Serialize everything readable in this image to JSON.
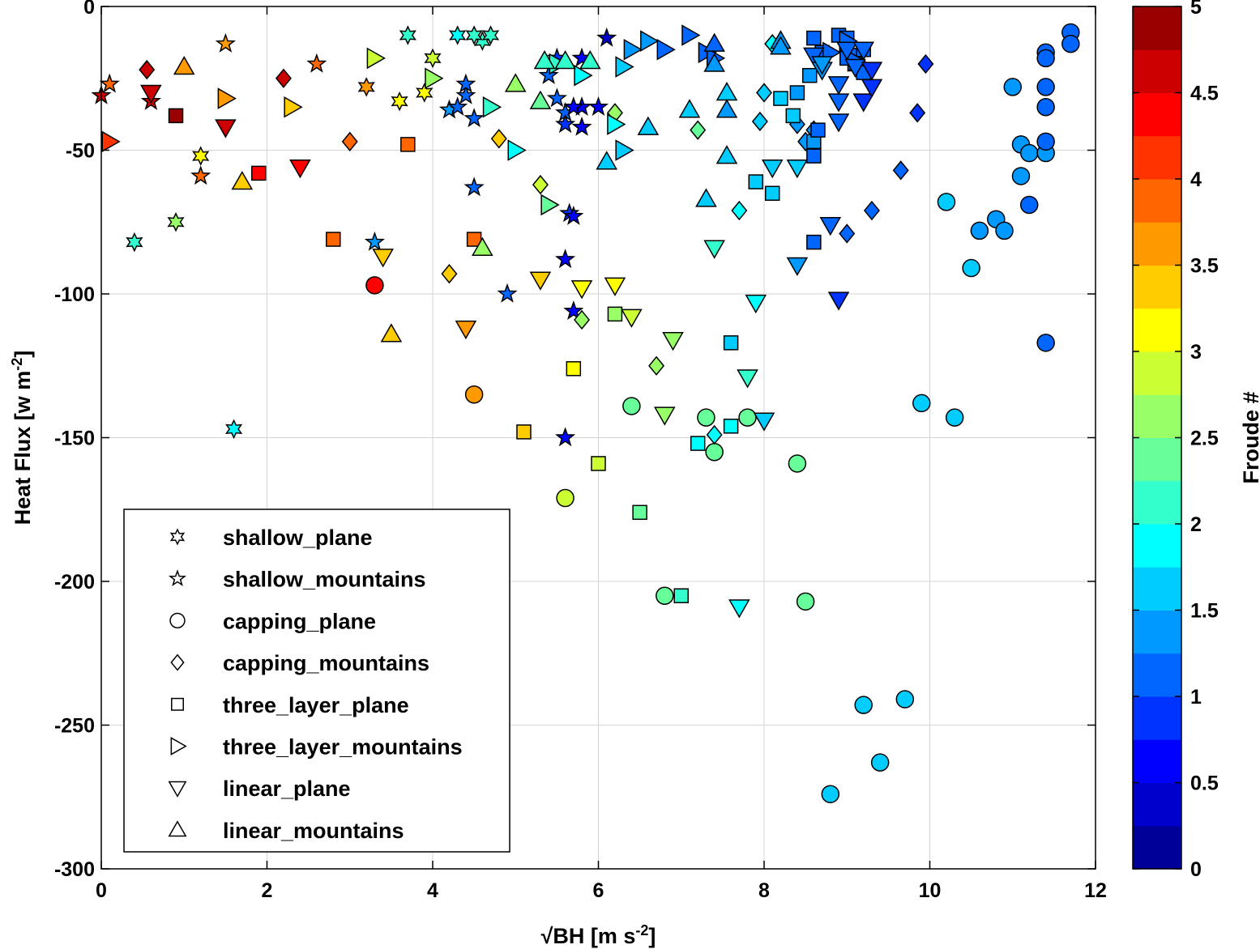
{
  "chart_data": {
    "type": "scatter",
    "xlabel_parts": [
      "√BH [m s",
      "-2",
      "]"
    ],
    "ylabel_parts": [
      "Heat Flux [w m",
      "-2",
      "]"
    ],
    "xlim": [
      0,
      12
    ],
    "ylim": [
      -300,
      0
    ],
    "xticks": [
      0,
      2,
      4,
      6,
      8,
      10,
      12
    ],
    "yticks": [
      0,
      -50,
      -100,
      -150,
      -200,
      -250,
      -300
    ],
    "xtick_labels": [
      "0",
      "2",
      "4",
      "6",
      "8",
      "10",
      "12"
    ],
    "ytick_labels": [
      "0",
      "-50",
      "-100",
      "-150",
      "-200",
      "-250",
      "-300"
    ],
    "grid": true,
    "legend_position": "lower-left",
    "colorbar": {
      "label": "Froude #",
      "range": [
        0,
        5
      ],
      "steps": 20,
      "ticks": [
        0,
        0.5,
        1,
        1.5,
        2,
        2.5,
        3,
        3.5,
        4,
        4.5,
        5
      ],
      "tick_labels": [
        "0",
        "0.5",
        "1",
        "1.5",
        "2",
        "2.5",
        "3",
        "3.5",
        "4",
        "4.5",
        "5"
      ],
      "colormap": "jet"
    },
    "series": [
      {
        "name": "shallow_plane",
        "marker": "hexagram",
        "points": [
          [
            0.4,
            -82,
            2.2
          ],
          [
            0.9,
            -75,
            2.6
          ],
          [
            1.2,
            -52,
            3.1
          ],
          [
            1.6,
            -147,
            1.8
          ],
          [
            3.7,
            -10,
            2.2
          ],
          [
            4.0,
            -18,
            2.8
          ],
          [
            3.9,
            -30,
            3.0
          ],
          [
            3.6,
            -33,
            3.2
          ],
          [
            3.2,
            -28,
            3.5
          ],
          [
            4.3,
            -10,
            1.9
          ],
          [
            4.6,
            -12,
            2.0
          ],
          [
            4.7,
            -10,
            2.0
          ],
          [
            4.5,
            -10,
            2.0
          ]
        ]
      },
      {
        "name": "shallow_mountains",
        "marker": "pentagram",
        "points": [
          [
            0.0,
            -31,
            4.7
          ],
          [
            0.1,
            -27,
            3.8
          ],
          [
            0.6,
            -33,
            4.7
          ],
          [
            1.2,
            -59,
            3.8
          ],
          [
            1.5,
            -13,
            3.6
          ],
          [
            2.6,
            -20,
            3.8
          ],
          [
            3.3,
            -82,
            1.3
          ],
          [
            4.2,
            -36,
            1.3
          ],
          [
            4.3,
            -35,
            1.2
          ],
          [
            4.4,
            -31,
            1.2
          ],
          [
            4.4,
            -27,
            1.2
          ],
          [
            4.5,
            -39,
            1.1
          ],
          [
            4.5,
            -63,
            1.0
          ],
          [
            4.9,
            -100,
            1.0
          ],
          [
            5.4,
            -24,
            1.0
          ],
          [
            5.5,
            -32,
            1.1
          ],
          [
            5.5,
            -18,
            0.9
          ],
          [
            5.6,
            -37,
            1.0
          ],
          [
            5.6,
            -41,
            0.9
          ],
          [
            5.65,
            -72,
            0.8
          ],
          [
            5.7,
            -73,
            0.7
          ],
          [
            5.6,
            -88,
            0.7
          ],
          [
            5.7,
            -106,
            0.7
          ],
          [
            5.6,
            -150,
            0.7
          ],
          [
            5.8,
            -18,
            0.6
          ],
          [
            5.8,
            -35,
            0.7
          ],
          [
            5.8,
            -42,
            0.7
          ],
          [
            6.0,
            -35,
            0.5
          ],
          [
            6.1,
            -11,
            0.3
          ],
          [
            5.7,
            -35,
            0.7
          ]
        ]
      },
      {
        "name": "capping_plane",
        "marker": "circle",
        "points": [
          [
            3.3,
            -97,
            4.3
          ],
          [
            4.5,
            -135,
            3.7
          ],
          [
            5.6,
            -171,
            2.8
          ],
          [
            6.4,
            -139,
            2.4
          ],
          [
            6.8,
            -205,
            2.4
          ],
          [
            7.3,
            -143,
            2.4
          ],
          [
            7.4,
            -155,
            2.4
          ],
          [
            7.8,
            -143,
            2.4
          ],
          [
            8.4,
            -159,
            2.4
          ],
          [
            8.5,
            -207,
            2.4
          ],
          [
            8.8,
            -274,
            1.7
          ],
          [
            9.2,
            -243,
            1.7
          ],
          [
            9.4,
            -263,
            1.6
          ],
          [
            9.7,
            -241,
            1.7
          ],
          [
            9.9,
            -138,
            1.6
          ],
          [
            10.2,
            -68,
            1.5
          ],
          [
            10.3,
            -143,
            1.5
          ],
          [
            10.5,
            -91,
            1.5
          ],
          [
            10.6,
            -78,
            1.4
          ],
          [
            10.8,
            -74,
            1.4
          ],
          [
            10.9,
            -78,
            1.4
          ],
          [
            11.0,
            -28,
            1.4
          ],
          [
            11.1,
            -59,
            1.3
          ],
          [
            11.1,
            -48,
            1.4
          ],
          [
            11.2,
            -69,
            1.1
          ],
          [
            11.2,
            -51,
            1.3
          ],
          [
            11.4,
            -51,
            1.3
          ],
          [
            11.4,
            -35,
            1.0
          ],
          [
            11.4,
            -28,
            1.0
          ],
          [
            11.4,
            -16,
            1.0
          ],
          [
            11.4,
            -47,
            1.1
          ],
          [
            11.4,
            -117,
            1.0
          ],
          [
            11.4,
            -18,
            1.0
          ],
          [
            11.7,
            -9,
            1.1
          ],
          [
            11.7,
            -13,
            1.1
          ]
        ]
      },
      {
        "name": "capping_mountains",
        "marker": "diamond",
        "points": [
          [
            0.55,
            -22,
            4.5
          ],
          [
            2.2,
            -25,
            4.5
          ],
          [
            3.0,
            -47,
            3.9
          ],
          [
            4.2,
            -93,
            3.3
          ],
          [
            4.8,
            -46,
            3.3
          ],
          [
            5.3,
            -62,
            2.9
          ],
          [
            5.8,
            -109,
            2.6
          ],
          [
            6.2,
            -37,
            2.6
          ],
          [
            6.7,
            -125,
            2.5
          ],
          [
            7.2,
            -43,
            2.3
          ],
          [
            7.7,
            -71,
            1.8
          ],
          [
            7.95,
            -40,
            1.6
          ],
          [
            8.0,
            -30,
            1.5
          ],
          [
            8.1,
            -13,
            1.8
          ],
          [
            8.4,
            -41,
            1.4
          ],
          [
            8.5,
            -47,
            1.3
          ],
          [
            8.6,
            -43,
            1.3
          ],
          [
            9.0,
            -79,
            1.0
          ],
          [
            9.3,
            -71,
            1.0
          ],
          [
            9.65,
            -57,
            1.0
          ],
          [
            9.85,
            -37,
            0.9
          ],
          [
            9.95,
            -20,
            0.9
          ],
          [
            7.4,
            -149,
            1.9
          ]
        ]
      },
      {
        "name": "three_layer_plane",
        "marker": "square",
        "points": [
          [
            0.9,
            -38,
            4.8
          ],
          [
            1.9,
            -58,
            4.3
          ],
          [
            2.8,
            -81,
            3.8
          ],
          [
            3.7,
            -48,
            3.8
          ],
          [
            4.5,
            -81,
            3.8
          ],
          [
            5.1,
            -148,
            3.3
          ],
          [
            5.7,
            -126,
            3.1
          ],
          [
            6.0,
            -159,
            2.9
          ],
          [
            6.2,
            -107,
            2.7
          ],
          [
            6.5,
            -176,
            2.4
          ],
          [
            7.0,
            -205,
            2.1
          ],
          [
            7.2,
            -152,
            1.8
          ],
          [
            7.6,
            -146,
            1.8
          ],
          [
            7.6,
            -117,
            1.7
          ],
          [
            7.9,
            -61,
            1.6
          ],
          [
            8.1,
            -65,
            1.6
          ],
          [
            8.2,
            -32,
            1.6
          ],
          [
            8.35,
            -38,
            1.5
          ],
          [
            8.4,
            -30,
            1.4
          ],
          [
            8.55,
            -24,
            1.3
          ],
          [
            8.6,
            -47,
            1.3
          ],
          [
            8.6,
            -52,
            1.2
          ],
          [
            8.6,
            -82,
            1.2
          ],
          [
            8.65,
            -43,
            1.2
          ],
          [
            8.6,
            -11,
            1.1
          ],
          [
            8.7,
            -16,
            1.1
          ],
          [
            8.9,
            -10,
            1.1
          ],
          [
            9.0,
            -11,
            1.0
          ],
          [
            9.0,
            -18,
            1.0
          ],
          [
            9.1,
            -17,
            1.0
          ],
          [
            9.2,
            -15,
            1.0
          ],
          [
            9.1,
            -20,
            1.0
          ],
          [
            9.2,
            -23,
            1.0
          ]
        ]
      },
      {
        "name": "three_layer_mountains",
        "marker": "triangle-right",
        "points": [
          [
            0.1,
            -47,
            4.0
          ],
          [
            1.5,
            -32,
            3.7
          ],
          [
            2.3,
            -35,
            3.4
          ],
          [
            3.3,
            -18,
            2.8
          ],
          [
            4.0,
            -25,
            2.7
          ],
          [
            4.7,
            -35,
            2.2
          ],
          [
            5.0,
            -50,
            1.9
          ],
          [
            5.4,
            -69,
            2.4
          ],
          [
            5.5,
            -20,
            2.0
          ],
          [
            5.8,
            -24,
            1.8
          ],
          [
            6.2,
            -41,
            1.8
          ],
          [
            6.3,
            -21,
            1.5
          ],
          [
            6.3,
            -50,
            1.6
          ],
          [
            6.4,
            -15,
            1.4
          ],
          [
            6.6,
            -12,
            1.3
          ],
          [
            6.8,
            -15,
            1.2
          ],
          [
            7.1,
            -10,
            1.2
          ],
          [
            7.3,
            -16,
            1.0
          ],
          [
            7.4,
            -18,
            1.2
          ],
          [
            8.8,
            -16,
            1.0
          ],
          [
            9.0,
            -12,
            1.0
          ],
          [
            9.1,
            -19,
            1.0
          ]
        ]
      },
      {
        "name": "linear_plane",
        "marker": "triangle-down",
        "points": [
          [
            0.6,
            -30,
            4.7
          ],
          [
            1.5,
            -42,
            4.7
          ],
          [
            2.4,
            -56,
            4.3
          ],
          [
            3.4,
            -87,
            3.4
          ],
          [
            4.4,
            -112,
            3.6
          ],
          [
            5.3,
            -95,
            3.3
          ],
          [
            5.8,
            -98,
            3.2
          ],
          [
            6.2,
            -97,
            3.0
          ],
          [
            6.4,
            -108,
            2.9
          ],
          [
            6.8,
            -142,
            2.7
          ],
          [
            6.9,
            -116,
            2.5
          ],
          [
            7.4,
            -84,
            2.1
          ],
          [
            7.8,
            -129,
            2.1
          ],
          [
            7.9,
            -103,
            1.8
          ],
          [
            8.0,
            -144,
            1.6
          ],
          [
            8.1,
            -56,
            1.6
          ],
          [
            8.4,
            -56,
            1.5
          ],
          [
            8.4,
            -90,
            1.4
          ],
          [
            8.6,
            -17,
            1.2
          ],
          [
            8.7,
            -22,
            1.4
          ],
          [
            8.7,
            -20,
            1.3
          ],
          [
            8.8,
            -76,
            1.1
          ],
          [
            8.9,
            -33,
            1.0
          ],
          [
            8.9,
            -27,
            1.0
          ],
          [
            8.9,
            -40,
            1.0
          ],
          [
            8.9,
            -102,
            0.9
          ],
          [
            9.0,
            -15,
            1.0
          ],
          [
            9.1,
            -21,
            1.0
          ],
          [
            9.2,
            -33,
            0.9
          ],
          [
            9.3,
            -22,
            0.9
          ],
          [
            9.3,
            -28,
            0.9
          ],
          [
            9.2,
            -15,
            1.0
          ],
          [
            7.7,
            -209,
            1.9
          ]
        ]
      },
      {
        "name": "linear_mountains",
        "marker": "triangle-up",
        "points": [
          [
            1.0,
            -21,
            3.5
          ],
          [
            1.7,
            -61,
            3.3
          ],
          [
            3.5,
            -114,
            3.3
          ],
          [
            4.6,
            -84,
            2.5
          ],
          [
            5.0,
            -27,
            2.5
          ],
          [
            5.3,
            -33,
            2.3
          ],
          [
            5.35,
            -19,
            2.2
          ],
          [
            5.6,
            -19,
            2.1
          ],
          [
            5.9,
            -19,
            2.0
          ],
          [
            6.1,
            -54,
            1.6
          ],
          [
            6.6,
            -42,
            1.7
          ],
          [
            7.1,
            -36,
            1.6
          ],
          [
            7.3,
            -67,
            1.6
          ],
          [
            7.4,
            -20,
            1.4
          ],
          [
            7.4,
            -13,
            1.2
          ],
          [
            7.55,
            -30,
            1.5
          ],
          [
            7.55,
            -36,
            1.4
          ],
          [
            7.55,
            -52,
            1.6
          ],
          [
            8.2,
            -12,
            1.4
          ],
          [
            8.2,
            -14,
            1.3
          ]
        ]
      }
    ],
    "legend": [
      {
        "name": "shallow_plane",
        "marker": "hexagram"
      },
      {
        "name": "shallow_mountains",
        "marker": "pentagram"
      },
      {
        "name": "capping_plane",
        "marker": "circle"
      },
      {
        "name": "capping_mountains",
        "marker": "diamond"
      },
      {
        "name": "three_layer_plane",
        "marker": "square"
      },
      {
        "name": "three_layer_mountains",
        "marker": "triangle-right"
      },
      {
        "name": "linear_plane",
        "marker": "triangle-down"
      },
      {
        "name": "linear_mountains",
        "marker": "triangle-up"
      }
    ]
  }
}
